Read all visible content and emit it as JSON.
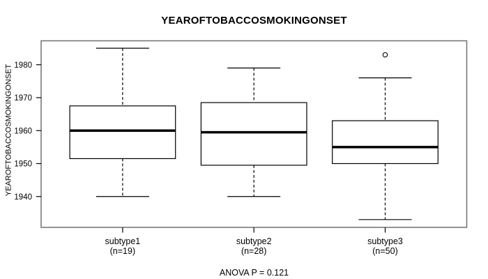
{
  "title": "YEAROFTOBACCOSMOKINGONSET",
  "y_axis": {
    "label": "YEAROFTOBACCOSMOKINGONSET",
    "ticks": [
      1940,
      1950,
      1960,
      1970,
      1980
    ]
  },
  "groups": [
    {
      "label": "subtype1",
      "sublabel": "(n=19)"
    },
    {
      "label": "subtype2",
      "sublabel": "(n=28)"
    },
    {
      "label": "subtype3",
      "sublabel": "(n=50)"
    }
  ],
  "footer": {
    "anova_label": "ANOVA P = 0.121"
  },
  "colors": {
    "line": "#000000",
    "frame": "#707070",
    "background": "#ffffff"
  },
  "chart_data": {
    "type": "boxplot",
    "title": "YEAROFTOBACCOSMOKINGONSET",
    "ylabel": "YEAROFTOBACCOSMOKINGONSET",
    "xlabel": "",
    "categories": [
      "subtype1",
      "subtype2",
      "subtype3"
    ],
    "sample_sizes": [
      19,
      28,
      50
    ],
    "yticks": [
      1940,
      1950,
      1960,
      1970,
      1980
    ],
    "ylim": [
      1930.6,
      1987.2
    ],
    "grid": false,
    "legend": "none",
    "annotation": "ANOVA P = 0.121",
    "series": [
      {
        "name": "subtype1",
        "n": 19,
        "whisker_low": 1940,
        "q1": 1951.5,
        "median": 1960,
        "q3": 1967.5,
        "whisker_high": 1985,
        "outliers": []
      },
      {
        "name": "subtype2",
        "n": 28,
        "whisker_low": 1940,
        "q1": 1949.5,
        "median": 1959.5,
        "q3": 1968.5,
        "whisker_high": 1979,
        "outliers": []
      },
      {
        "name": "subtype3",
        "n": 50,
        "whisker_low": 1933,
        "q1": 1950,
        "median": 1955,
        "q3": 1963,
        "whisker_high": 1976,
        "outliers": [
          1983
        ]
      }
    ]
  }
}
